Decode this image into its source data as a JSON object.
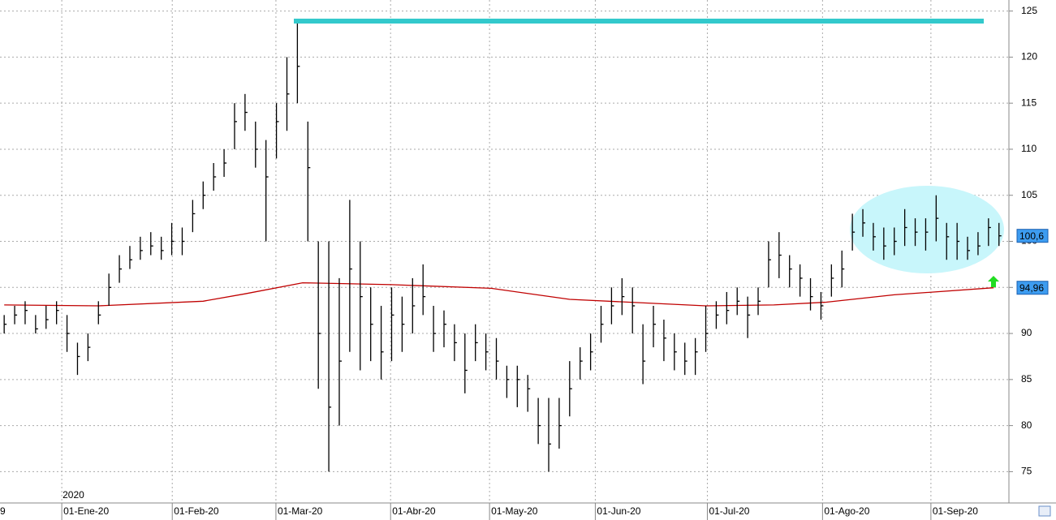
{
  "chart_data": {
    "type": "ohlc",
    "color": "#000000",
    "x": [
      -11,
      -9,
      -7,
      -5,
      -3,
      -1,
      1,
      3,
      5,
      7,
      9,
      11,
      13,
      15,
      17,
      19,
      21,
      23,
      25,
      27,
      29,
      31,
      33,
      35,
      37,
      39,
      41,
      43,
      45,
      47,
      49,
      51,
      53,
      55,
      57,
      59,
      61,
      63,
      65,
      67,
      69,
      71,
      73,
      75,
      77,
      79,
      81,
      83,
      85,
      87,
      89,
      91,
      93,
      95,
      97,
      99,
      101,
      103,
      105,
      107,
      109,
      111,
      113,
      115,
      117,
      119,
      121,
      123,
      125,
      127,
      129,
      131,
      133,
      135,
      137,
      139,
      141,
      143,
      145,
      147,
      149,
      151,
      153,
      155,
      157,
      159,
      161,
      163,
      165,
      167,
      169,
      171,
      173,
      175,
      177,
      179
    ],
    "high": [
      92,
      93,
      93.5,
      92,
      93,
      93.5,
      92,
      89,
      90,
      93.5,
      96.5,
      98.5,
      99.5,
      100.5,
      101,
      100.5,
      102,
      101.5,
      104.5,
      106.5,
      108.5,
      110,
      115,
      116,
      113,
      111,
      115,
      120,
      124,
      113,
      100,
      100,
      96,
      104.5,
      100,
      95,
      93,
      95,
      94,
      96,
      97.5,
      93,
      92.5,
      91,
      90,
      91,
      90,
      89.5,
      86.5,
      86.5,
      85.5,
      83,
      83,
      83,
      87,
      88.5,
      90,
      93,
      95,
      96,
      95,
      91,
      93,
      91.5,
      90,
      89,
      89.5,
      93,
      93.5,
      94.5,
      95,
      94,
      95,
      100,
      101,
      98.5,
      97.5,
      96,
      94.5,
      97.5,
      99,
      103,
      103.5,
      102,
      101.5,
      101.5,
      103.5,
      102.5,
      102.5,
      105,
      102,
      102,
      100.5,
      101,
      102.5,
      102
    ],
    "low": [
      90,
      91,
      91,
      90,
      90.5,
      91,
      88,
      85.5,
      87,
      91,
      93,
      95.5,
      97,
      98,
      98.5,
      98,
      98.5,
      98.5,
      101,
      103.5,
      105.5,
      107,
      110,
      112,
      108,
      100,
      109,
      112,
      115,
      100,
      84,
      75,
      80,
      88,
      86,
      87,
      85,
      87,
      88,
      90,
      92,
      88,
      88.5,
      87,
      83.5,
      87,
      86,
      85,
      83,
      82,
      81.5,
      78,
      75,
      77.5,
      81,
      85,
      86,
      89,
      91,
      92,
      90,
      84.5,
      88.5,
      87,
      86,
      85.5,
      85.5,
      88,
      90.5,
      91,
      92,
      89.5,
      92,
      95,
      96,
      95,
      94,
      92.5,
      91.5,
      94,
      95,
      99,
      100.5,
      99,
      98,
      98.5,
      99.5,
      99.5,
      99,
      100,
      98,
      98,
      98,
      98.5,
      99.5,
      99.5
    ],
    "close": [
      91,
      92,
      92.5,
      90.5,
      91.5,
      92.5,
      90,
      87.5,
      88.5,
      92,
      95,
      97,
      98,
      99,
      99.5,
      99,
      100,
      100,
      103,
      105,
      107,
      108.5,
      113,
      114,
      110,
      107,
      113,
      116,
      119,
      108,
      90,
      82,
      87,
      97,
      94,
      91,
      88,
      92,
      91,
      93,
      94,
      90,
      91,
      89,
      86,
      89,
      88,
      87,
      85,
      85,
      84,
      80,
      78,
      80,
      84,
      87,
      88,
      91,
      93,
      94,
      93,
      87,
      91,
      89.5,
      88,
      87,
      88,
      90,
      92,
      92.5,
      93.5,
      92,
      93.5,
      98,
      98.5,
      97,
      96,
      94,
      93,
      96,
      97,
      101,
      102,
      100.5,
      99.5,
      100,
      101.5,
      101,
      101,
      102.5,
      100.5,
      100,
      99,
      99.5,
      101.5,
      100.6
    ],
    "ma": {
      "color": "#c00000",
      "x": [
        -11,
        7,
        27,
        35,
        46,
        63,
        82,
        97,
        123,
        136,
        146,
        159,
        178
      ],
      "values": [
        93.1,
        93.0,
        93.5,
        94.3,
        95.5,
        95.3,
        94.9,
        93.7,
        93.0,
        93.1,
        93.4,
        94.2,
        94.96
      ]
    },
    "last_labels": [
      {
        "value": 100.6,
        "label": "100,6"
      },
      {
        "value": 94.96,
        "label": "94,96"
      }
    ],
    "xlim": [
      -11.8,
      180.9
    ],
    "ylim": [
      71.6,
      126.2
    ],
    "yticks": [
      75,
      80,
      85,
      90,
      95,
      100,
      105,
      110,
      115,
      120,
      125
    ],
    "xticks": [
      {
        "value": -12.3,
        "label": "9"
      },
      {
        "value": 0,
        "label": "01-Ene-20"
      },
      {
        "value": 21.1,
        "label": "01-Feb-20"
      },
      {
        "value": 40.9,
        "label": "01-Mar-20"
      },
      {
        "value": 62.8,
        "label": "01-Abr-20"
      },
      {
        "value": 81.7,
        "label": "01-May-20"
      },
      {
        "value": 101.9,
        "label": "01-Jun-20"
      },
      {
        "value": 123.3,
        "label": "01-Jul-20"
      },
      {
        "value": 145.3,
        "label": "01-Ago-20"
      },
      {
        "value": 166,
        "label": "01-Sep-20"
      }
    ],
    "year_label": "2020",
    "grid": true
  }
}
